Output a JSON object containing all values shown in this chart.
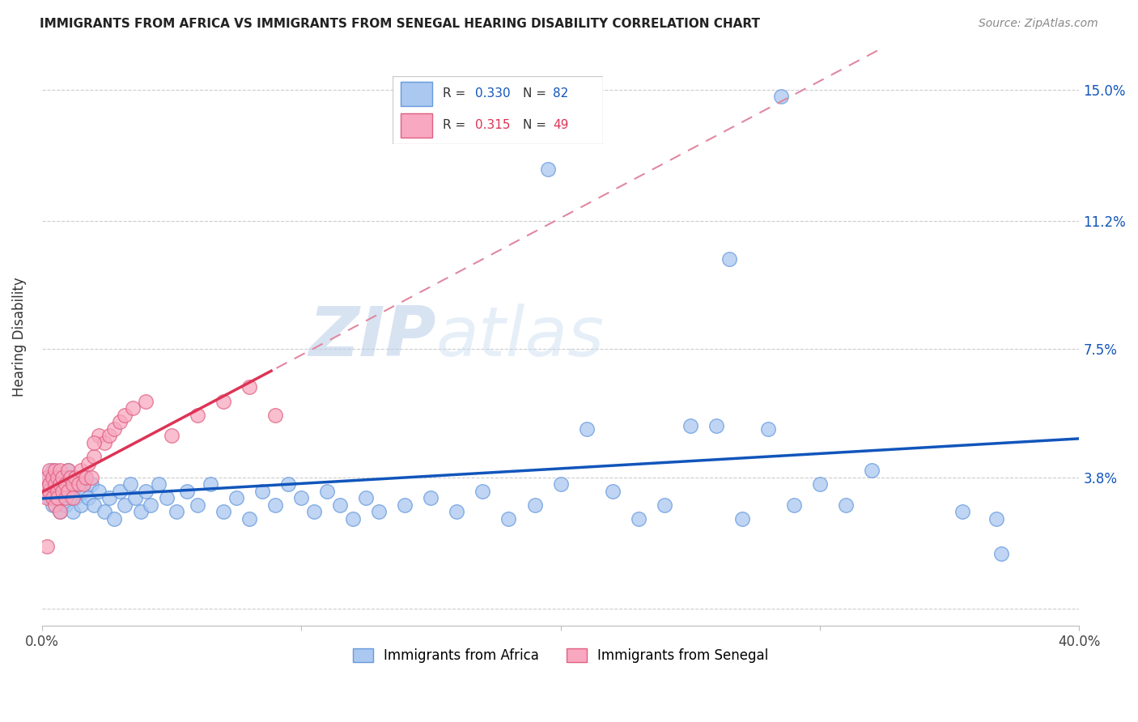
{
  "title": "IMMIGRANTS FROM AFRICA VS IMMIGRANTS FROM SENEGAL HEARING DISABILITY CORRELATION CHART",
  "source": "Source: ZipAtlas.com",
  "ylabel": "Hearing Disability",
  "x_min": 0.0,
  "x_max": 0.4,
  "y_min": -0.005,
  "y_max": 0.162,
  "x_ticks": [
    0.0,
    0.1,
    0.2,
    0.3,
    0.4
  ],
  "x_tick_labels": [
    "0.0%",
    "",
    "",
    "",
    "40.0%"
  ],
  "y_ticks": [
    0.0,
    0.038,
    0.075,
    0.112,
    0.15
  ],
  "y_tick_labels": [
    "",
    "3.8%",
    "7.5%",
    "11.2%",
    "15.0%"
  ],
  "africa_R": 0.33,
  "africa_N": 82,
  "senegal_R": 0.315,
  "senegal_N": 49,
  "africa_color": "#aac8f0",
  "africa_edge": "#6699dd",
  "senegal_color": "#f8a8c0",
  "senegal_edge": "#e06080",
  "trendline_africa_color": "#1155bb",
  "trendline_senegal_solid_color": "#dd3355",
  "trendline_senegal_dash_color": "#e088a0",
  "watermark_color": "#ccddf8",
  "africa_x": [
    0.002,
    0.003,
    0.003,
    0.004,
    0.004,
    0.005,
    0.005,
    0.006,
    0.006,
    0.007,
    0.007,
    0.008,
    0.008,
    0.009,
    0.009,
    0.01,
    0.01,
    0.011,
    0.012,
    0.013,
    0.014,
    0.015,
    0.016,
    0.017,
    0.018,
    0.019,
    0.02,
    0.022,
    0.024,
    0.026,
    0.028,
    0.03,
    0.032,
    0.034,
    0.036,
    0.038,
    0.04,
    0.042,
    0.045,
    0.048,
    0.052,
    0.056,
    0.06,
    0.065,
    0.07,
    0.075,
    0.08,
    0.085,
    0.09,
    0.095,
    0.1,
    0.105,
    0.11,
    0.115,
    0.12,
    0.125,
    0.13,
    0.14,
    0.15,
    0.16,
    0.17,
    0.18,
    0.19,
    0.2,
    0.21,
    0.22,
    0.23,
    0.24,
    0.25,
    0.26,
    0.27,
    0.28,
    0.29,
    0.3,
    0.31,
    0.32,
    0.265,
    0.285,
    0.37,
    0.368,
    0.355,
    0.195
  ],
  "africa_y": [
    0.038,
    0.032,
    0.036,
    0.03,
    0.04,
    0.034,
    0.038,
    0.032,
    0.036,
    0.028,
    0.034,
    0.038,
    0.032,
    0.036,
    0.03,
    0.04,
    0.033,
    0.035,
    0.028,
    0.032,
    0.036,
    0.03,
    0.034,
    0.038,
    0.032,
    0.036,
    0.03,
    0.034,
    0.028,
    0.032,
    0.026,
    0.034,
    0.03,
    0.036,
    0.032,
    0.028,
    0.034,
    0.03,
    0.036,
    0.032,
    0.028,
    0.034,
    0.03,
    0.036,
    0.028,
    0.032,
    0.026,
    0.034,
    0.03,
    0.036,
    0.032,
    0.028,
    0.034,
    0.03,
    0.026,
    0.032,
    0.028,
    0.03,
    0.032,
    0.028,
    0.034,
    0.026,
    0.03,
    0.036,
    0.052,
    0.034,
    0.026,
    0.03,
    0.053,
    0.053,
    0.026,
    0.052,
    0.03,
    0.036,
    0.03,
    0.04,
    0.101,
    0.148,
    0.016,
    0.026,
    0.028,
    0.127
  ],
  "senegal_x": [
    0.002,
    0.002,
    0.002,
    0.003,
    0.003,
    0.003,
    0.004,
    0.004,
    0.005,
    0.005,
    0.005,
    0.006,
    0.006,
    0.006,
    0.007,
    0.007,
    0.007,
    0.008,
    0.008,
    0.009,
    0.009,
    0.01,
    0.01,
    0.011,
    0.012,
    0.012,
    0.013,
    0.014,
    0.015,
    0.016,
    0.017,
    0.018,
    0.019,
    0.02,
    0.022,
    0.024,
    0.026,
    0.028,
    0.03,
    0.032,
    0.035,
    0.04,
    0.05,
    0.06,
    0.07,
    0.08,
    0.09,
    0.002,
    0.02
  ],
  "senegal_y": [
    0.035,
    0.038,
    0.032,
    0.04,
    0.034,
    0.036,
    0.038,
    0.032,
    0.036,
    0.04,
    0.03,
    0.034,
    0.038,
    0.032,
    0.036,
    0.04,
    0.028,
    0.034,
    0.038,
    0.032,
    0.036,
    0.034,
    0.04,
    0.038,
    0.036,
    0.032,
    0.038,
    0.036,
    0.04,
    0.036,
    0.038,
    0.042,
    0.038,
    0.044,
    0.05,
    0.048,
    0.05,
    0.052,
    0.054,
    0.056,
    0.058,
    0.06,
    0.05,
    0.056,
    0.06,
    0.064,
    0.056,
    0.018,
    0.048
  ]
}
